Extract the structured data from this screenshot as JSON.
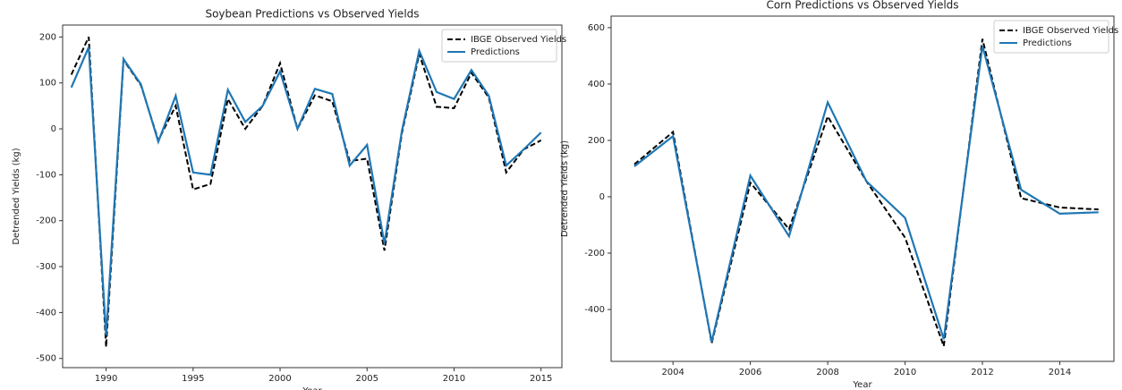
{
  "chart_data": [
    {
      "type": "line",
      "title": "Soybean Predictions vs Observed Yields",
      "x_label": "Year",
      "y_label": "Detrended Yields (kg)",
      "x": [
        1988,
        1989,
        1990,
        1991,
        1992,
        1993,
        1994,
        1995,
        1996,
        1997,
        1998,
        1999,
        2000,
        2001,
        2002,
        2003,
        2004,
        2005,
        2006,
        2007,
        2008,
        2009,
        2010,
        2011,
        2012,
        2013,
        2014,
        2015
      ],
      "series": [
        {
          "name": "IBGE Observed Yields",
          "color": "#000000",
          "dashed": true,
          "values": [
            118,
            200,
            -475,
            150,
            95,
            -25,
            50,
            -132,
            -120,
            65,
            0,
            50,
            143,
            0,
            73,
            60,
            -70,
            -65,
            -265,
            -10,
            163,
            48,
            45,
            122,
            68,
            -95,
            -45,
            -25
          ]
        },
        {
          "name": "Predictions",
          "color": "#1f77b4",
          "dashed": false,
          "values": [
            90,
            178,
            -450,
            152,
            97,
            -28,
            72,
            -95,
            -100,
            85,
            15,
            50,
            125,
            0,
            87,
            76,
            -80,
            -35,
            -250,
            -5,
            170,
            80,
            65,
            128,
            72,
            -80,
            -45,
            -8
          ]
        }
      ],
      "xlim": [
        1987.5,
        2016.2
      ],
      "xticks": [
        1990,
        1995,
        2000,
        2005,
        2010,
        2015
      ],
      "ylim": [
        -520,
        226
      ],
      "yticks": [
        -500,
        -400,
        -300,
        -200,
        -100,
        0,
        100,
        200
      ],
      "legend": "upper right"
    },
    {
      "type": "line",
      "title": "Corn Predictions vs Observed Yields",
      "x_label": "Year",
      "y_label": "Detrended Yields (kg)",
      "x": [
        2003,
        2004,
        2005,
        2006,
        2007,
        2008,
        2009,
        2010,
        2011,
        2012,
        2013,
        2014,
        2015
      ],
      "series": [
        {
          "name": "IBGE Observed Yields",
          "color": "#000000",
          "dashed": true,
          "values": [
            115,
            230,
            -520,
            50,
            -115,
            285,
            55,
            -145,
            -530,
            560,
            -5,
            -38,
            -45
          ]
        },
        {
          "name": "Predictions",
          "color": "#1f77b4",
          "dashed": false,
          "values": [
            108,
            215,
            -515,
            75,
            -140,
            335,
            55,
            -75,
            -505,
            535,
            25,
            -60,
            -55
          ]
        }
      ],
      "xlim": [
        2002.4,
        2015.4
      ],
      "xticks": [
        2004,
        2006,
        2008,
        2010,
        2012,
        2014
      ],
      "ylim": [
        -584,
        641
      ],
      "yticks": [
        -400,
        -200,
        0,
        200,
        400,
        600
      ],
      "legend": "upper right"
    }
  ]
}
